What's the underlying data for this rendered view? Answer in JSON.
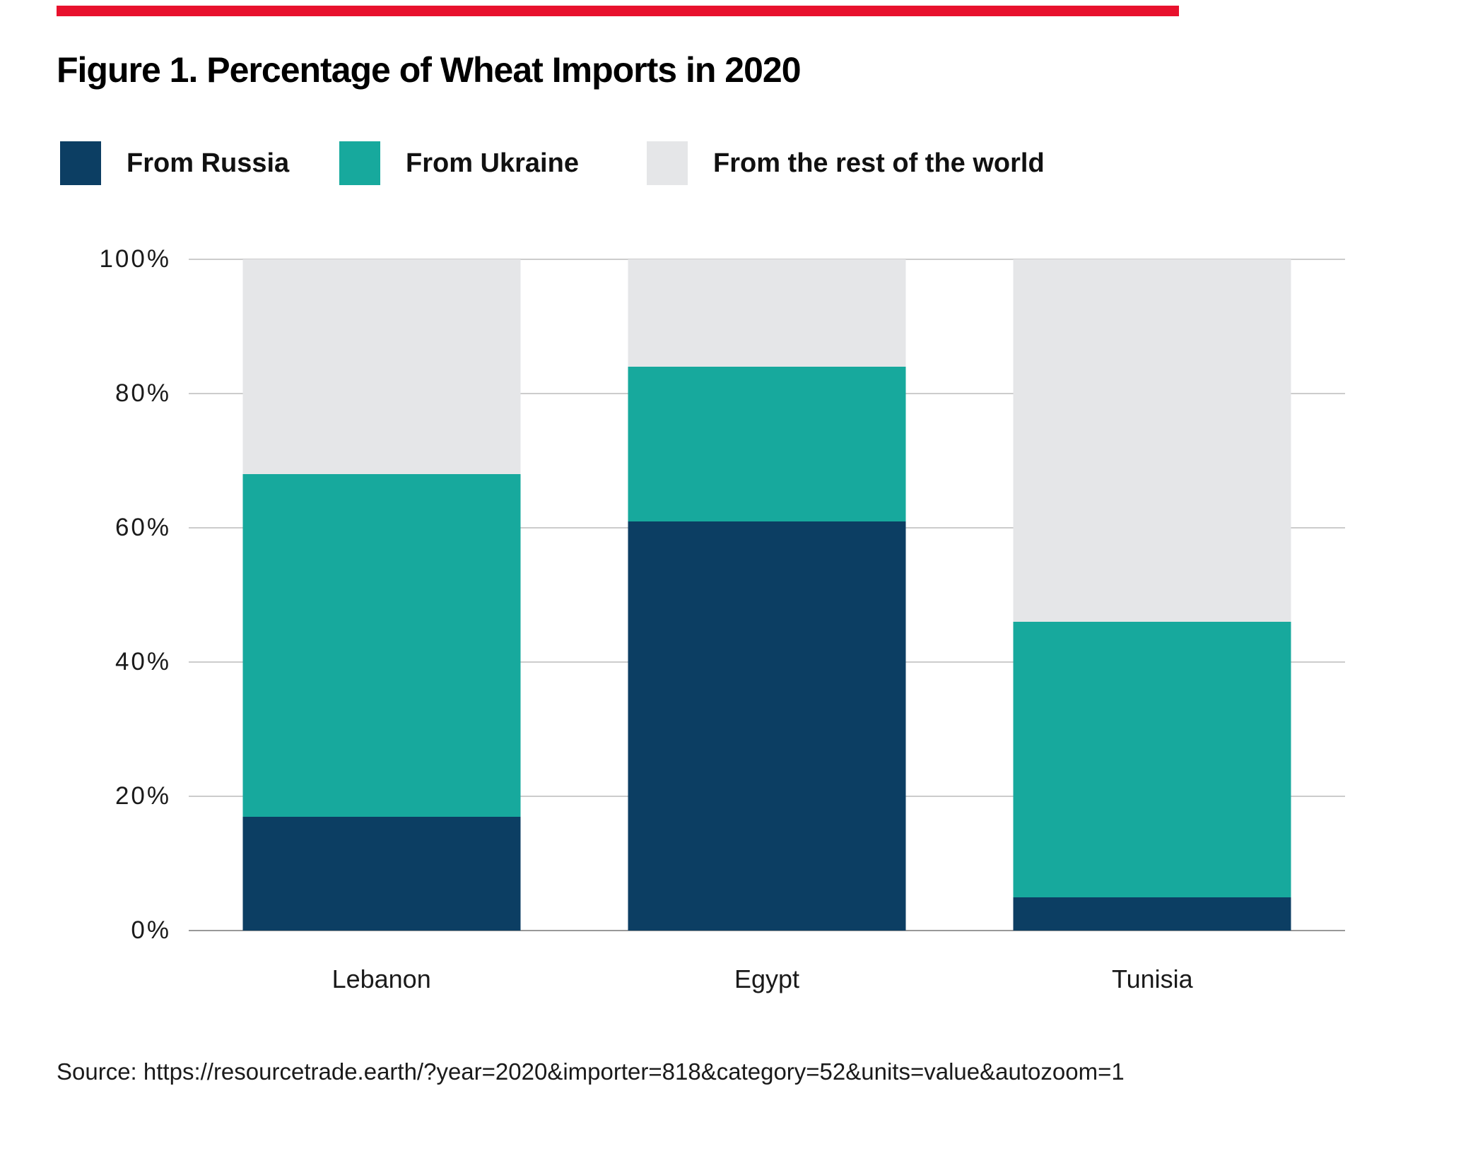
{
  "page": {
    "accent_bar_color": "#e8112d",
    "background_color": "#ffffff"
  },
  "figure": {
    "title": "Figure 1. Percentage of Wheat Imports in 2020",
    "source": "Source: https://resourcetrade.earth/?year=2020&importer=818&category=52&units=value&autozoom=1"
  },
  "legend": {
    "items": [
      {
        "label": "From Russia",
        "color": "#0c3e63"
      },
      {
        "label": "From Ukraine",
        "color": "#17a99d"
      },
      {
        "label": "From the rest of the world",
        "color": "#e5e6e8"
      }
    ]
  },
  "chart_data": {
    "type": "bar",
    "stacked": true,
    "unit": "percent",
    "title": "Figure 1. Percentage of Wheat Imports in 2020",
    "categories": [
      "Lebanon",
      "Egypt",
      "Tunisia"
    ],
    "series": [
      {
        "name": "From Russia",
        "color": "#0c3e63",
        "values": [
          17,
          61,
          5
        ]
      },
      {
        "name": "From Ukraine",
        "color": "#17a99d",
        "values": [
          51,
          23,
          41
        ]
      },
      {
        "name": "From the rest of the world",
        "color": "#e5e6e8",
        "values": [
          32,
          16,
          54
        ]
      }
    ],
    "xlabel": "",
    "ylabel": "",
    "ylim": [
      0,
      100
    ],
    "yticks": [
      0,
      20,
      40,
      60,
      80,
      100
    ],
    "ytick_labels": [
      "0%",
      "20%",
      "40%",
      "60%",
      "80%",
      "100%"
    ],
    "grid": "horizontal",
    "gridline_color": "#cccccc",
    "axis_line_color": "#999999",
    "legend_position": "top"
  }
}
